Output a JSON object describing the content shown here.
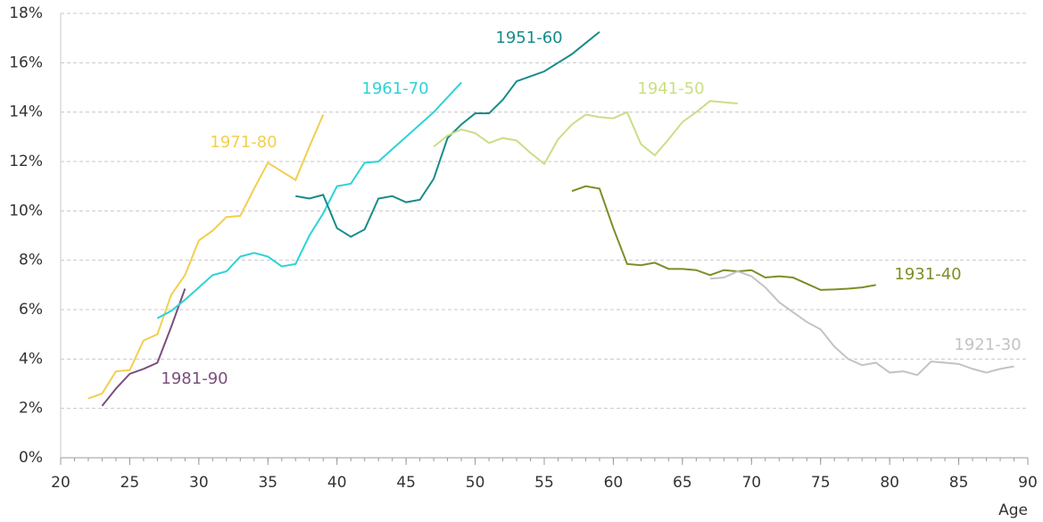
{
  "chart_data": {
    "type": "line",
    "x_label": "Age",
    "xlim": [
      20,
      90
    ],
    "xticks": [
      20,
      25,
      30,
      35,
      40,
      45,
      50,
      55,
      60,
      65,
      70,
      75,
      80,
      85,
      90
    ],
    "ylim": [
      0,
      18
    ],
    "yticks": [
      {
        "value": 0,
        "label": "0%"
      },
      {
        "value": 2,
        "label": "2%"
      },
      {
        "value": 4,
        "label": "4%"
      },
      {
        "value": 6,
        "label": "6%"
      },
      {
        "value": 8,
        "label": "8%"
      },
      {
        "value": 10,
        "label": "10%"
      },
      {
        "value": 12,
        "label": "12%"
      },
      {
        "value": 14,
        "label": "14%"
      },
      {
        "value": 16,
        "label": "16%"
      },
      {
        "value": 18,
        "label": "18%"
      }
    ],
    "grid": true,
    "series": [
      {
        "name": "1971-80",
        "color": "#f2cf4e",
        "x": [
          22,
          23,
          24,
          25,
          26,
          27,
          28,
          29,
          30,
          31,
          32,
          33,
          34,
          35,
          36,
          37,
          38,
          39
        ],
        "values": [
          2.4,
          2.6,
          3.5,
          3.55,
          4.75,
          5.0,
          6.6,
          7.4,
          8.8,
          9.2,
          9.75,
          9.8,
          10.9,
          11.95,
          11.6,
          11.25,
          12.6,
          13.9
        ]
      },
      {
        "name": "1981-90",
        "color": "#7b4f7a",
        "x": [
          23,
          24,
          25,
          26,
          27,
          28,
          29
        ],
        "values": [
          2.1,
          2.8,
          3.4,
          3.6,
          3.85,
          5.3,
          6.85
        ]
      },
      {
        "name": "1961-70",
        "color": "#2ed3d6",
        "x": [
          27,
          28,
          29,
          30,
          31,
          32,
          33,
          34,
          35,
          36,
          37,
          38,
          39,
          40,
          41,
          42,
          43,
          44,
          45,
          46,
          47,
          48,
          49
        ],
        "values": [
          5.65,
          5.95,
          6.4,
          6.9,
          7.4,
          7.55,
          8.15,
          8.3,
          8.15,
          7.75,
          7.85,
          9.0,
          9.9,
          11.0,
          11.1,
          11.95,
          12.0,
          12.5,
          13.0,
          13.5,
          14.0,
          14.6,
          15.2
        ]
      },
      {
        "name": "1951-60",
        "color": "#178c89",
        "x": [
          37,
          38,
          39,
          40,
          41,
          42,
          43,
          44,
          45,
          46,
          47,
          48,
          49,
          50,
          51,
          52,
          53,
          54,
          55,
          56,
          57,
          58,
          59
        ],
        "values": [
          10.6,
          10.5,
          10.65,
          9.3,
          8.95,
          9.25,
          10.5,
          10.6,
          10.35,
          10.45,
          11.3,
          12.95,
          13.5,
          13.95,
          13.95,
          14.5,
          15.25,
          15.45,
          15.65,
          16.0,
          16.35,
          16.8,
          17.25
        ]
      },
      {
        "name": "1941-50",
        "color": "#c9df85",
        "x": [
          47,
          48,
          49,
          50,
          51,
          52,
          53,
          54,
          55,
          56,
          57,
          58,
          59,
          60,
          61,
          62,
          63,
          64,
          65,
          66,
          67,
          68,
          69
        ],
        "values": [
          12.6,
          13.05,
          13.3,
          13.15,
          12.75,
          12.95,
          12.85,
          12.35,
          11.9,
          12.9,
          13.5,
          13.9,
          13.8,
          13.75,
          14.0,
          12.7,
          12.25,
          12.9,
          13.6,
          14.0,
          14.45,
          14.4,
          14.35
        ]
      },
      {
        "name": "1931-40",
        "color": "#7a8f26",
        "x": [
          57,
          58,
          59,
          60,
          61,
          62,
          63,
          64,
          65,
          66,
          67,
          68,
          69,
          70,
          71,
          72,
          73,
          74,
          75,
          76,
          77,
          78,
          79
        ],
        "values": [
          10.8,
          11.0,
          10.9,
          9.3,
          7.85,
          7.8,
          7.9,
          7.65,
          7.65,
          7.6,
          7.4,
          7.6,
          7.55,
          7.6,
          7.3,
          7.35,
          7.3,
          7.05,
          6.8,
          6.82,
          6.85,
          6.9,
          7.0
        ]
      },
      {
        "name": "1921-30",
        "color": "#c3c3c3",
        "x": [
          67,
          68,
          69,
          70,
          71,
          72,
          73,
          74,
          75,
          76,
          77,
          78,
          79,
          80,
          81,
          82,
          83,
          84,
          85,
          86,
          87,
          88,
          89
        ],
        "values": [
          7.25,
          7.3,
          7.55,
          7.35,
          6.9,
          6.3,
          5.9,
          5.5,
          5.2,
          4.5,
          4.0,
          3.75,
          3.85,
          3.45,
          3.5,
          3.35,
          3.9,
          3.85,
          3.8,
          3.6,
          3.45,
          3.6,
          3.7
        ]
      }
    ]
  }
}
